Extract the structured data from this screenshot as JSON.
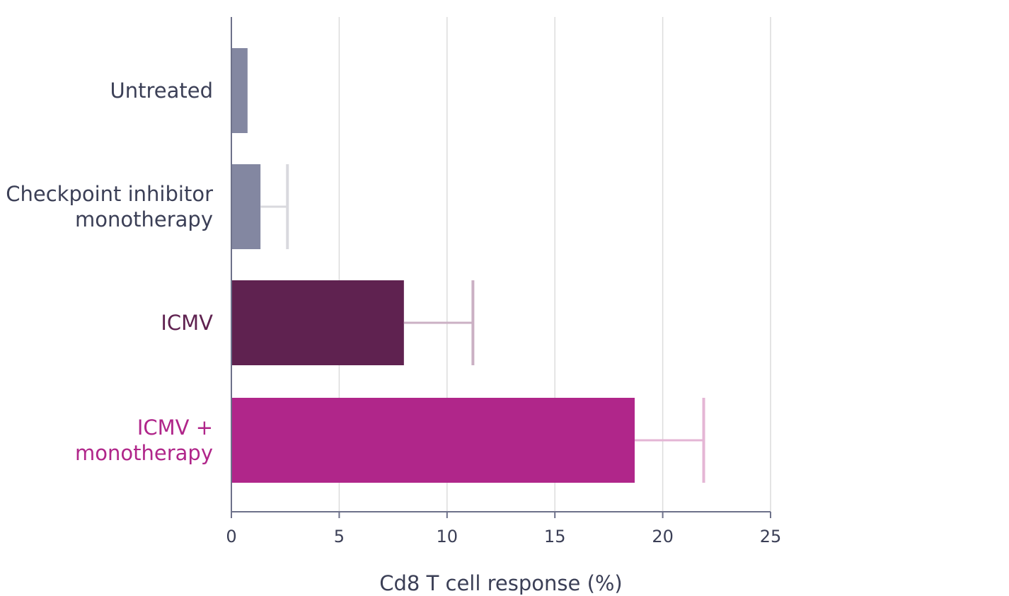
{
  "chart_data": {
    "type": "bar",
    "orientation": "horizontal",
    "categories": [
      [
        "Untreated"
      ],
      [
        "Checkpoint inhibitor",
        "monotherapy"
      ],
      [
        "ICMV"
      ],
      [
        "ICMV +",
        "monotherapy"
      ]
    ],
    "values": [
      0.75,
      1.35,
      8.0,
      18.7
    ],
    "error_upper": [
      null,
      2.6,
      11.2,
      21.9
    ],
    "bar_colors": [
      "#8387a1",
      "#8387a1",
      "#5f2250",
      "#b0268a"
    ],
    "error_colors": [
      "#d9d9de",
      "#d9d9de",
      "#cbb0c4",
      "#e4b6d5"
    ],
    "label_colors": [
      "#3b3f56",
      "#3b3f56",
      "#5f2250",
      "#b0268a"
    ],
    "xlabel": "Cd8 T cell response (%)",
    "xlim": [
      0,
      25
    ],
    "xticks": [
      0,
      5,
      10,
      15,
      20,
      25
    ],
    "grid": true
  }
}
